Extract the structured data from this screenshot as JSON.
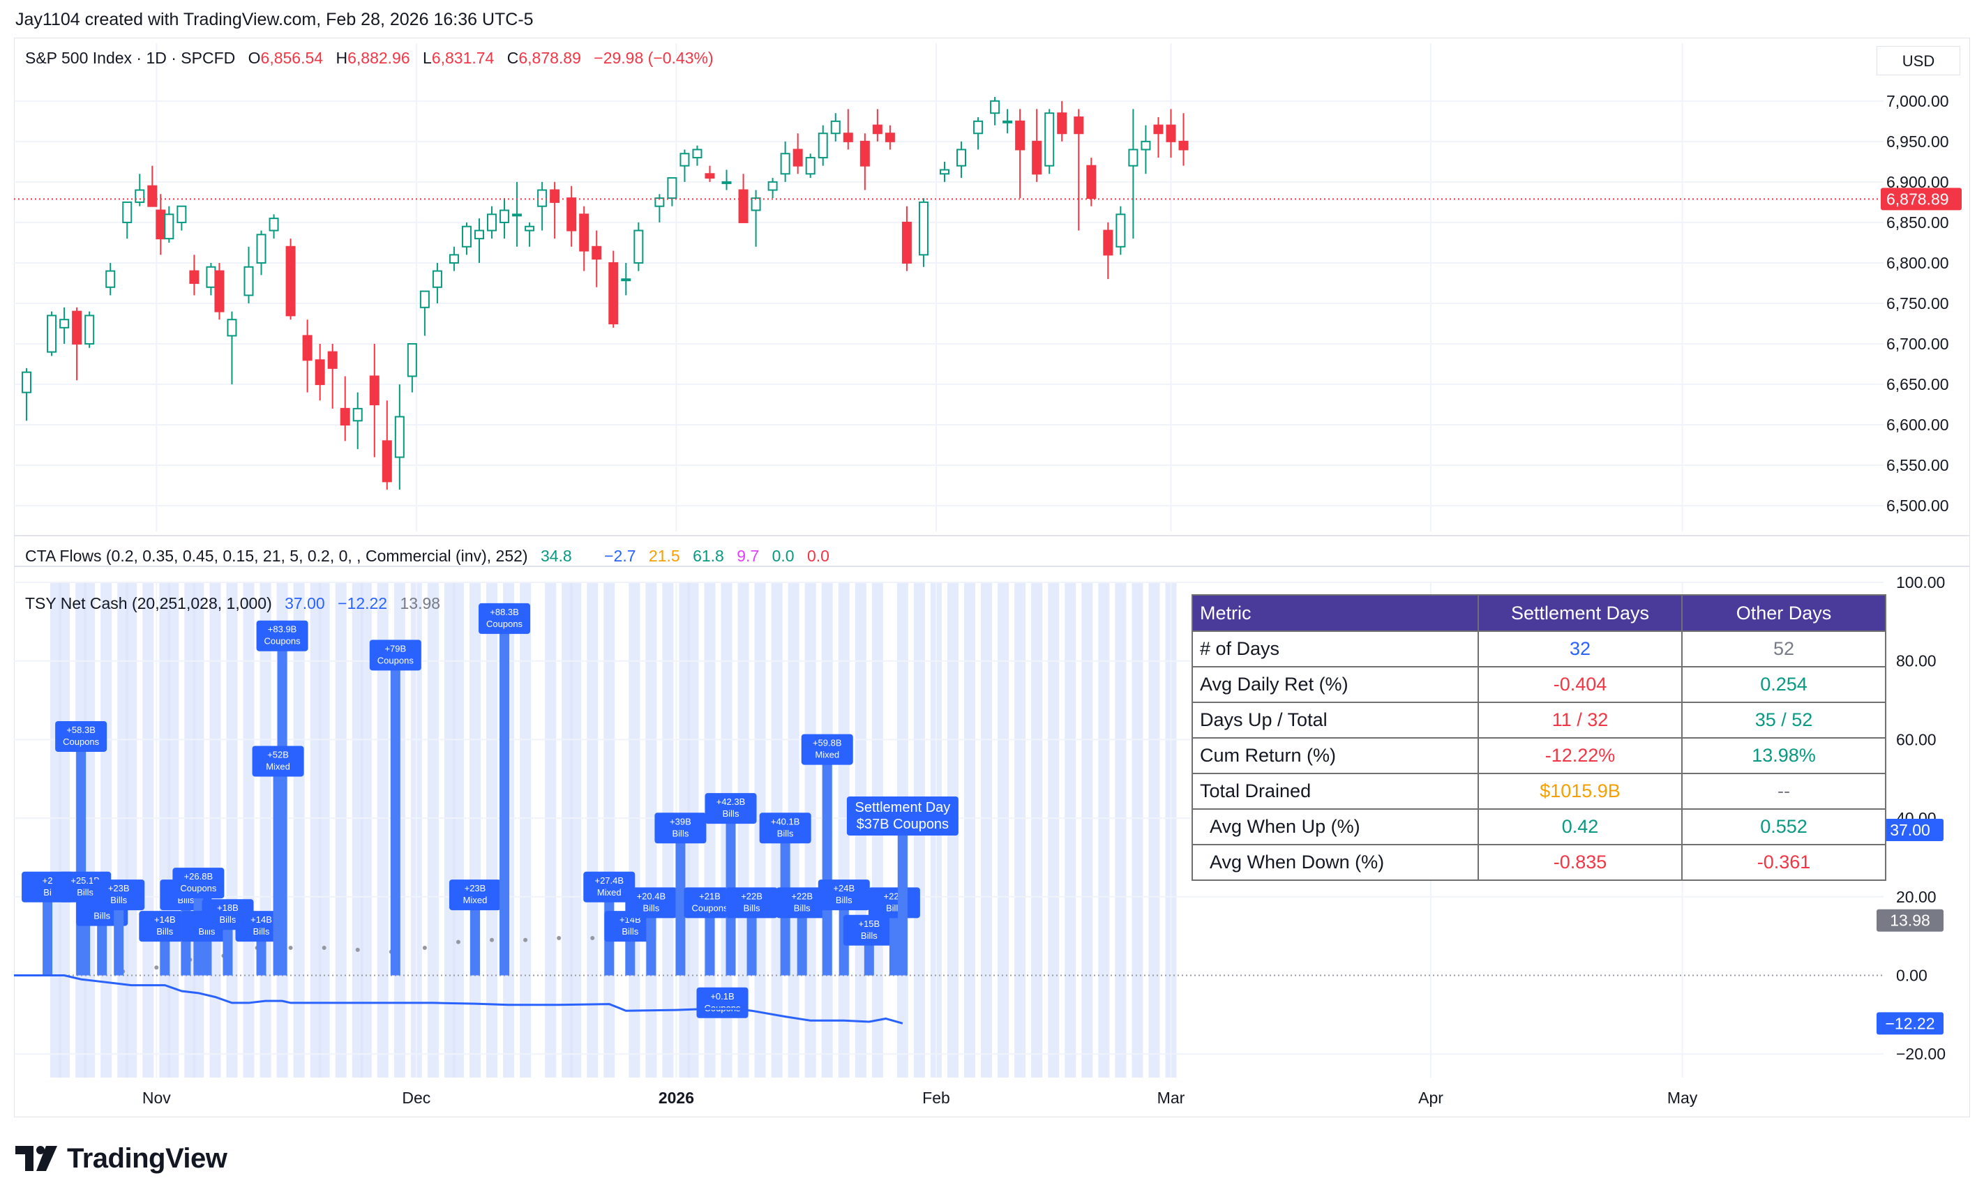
{
  "credit": "Jay1104 created with TradingView.com, Feb 28, 2026 16:36 UTC-5",
  "brand": "TradingView",
  "currency": "USD",
  "colors": {
    "up": "#089981",
    "down": "#f23645",
    "accent": "#2962ff",
    "table_header": "#4a3a9a"
  },
  "legend_price": {
    "symbol": "S&P 500 Index · 1D · SPCFD",
    "o_label": "O",
    "o_value": "6,856.54",
    "h_label": "H",
    "h_value": "6,882.96",
    "l_label": "L",
    "l_value": "6,831.74",
    "c_label": "C",
    "c_value": "6,878.89",
    "change": "−29.98 (−0.43%)"
  },
  "legend_cta": {
    "title": "CTA Flows (0.2, 0.35, 0.45, 0.15, 21, 5, 0.2, 0, , Commercial (inv), 252)",
    "v1": "34.8",
    "v2": "−2.7",
    "v3": "21.5",
    "v4": "61.8",
    "v5": "9.7",
    "v6": "0.0",
    "v7": "0.0"
  },
  "legend_tsy": {
    "title": "TSY Net Cash (20,251,028, 1,000)",
    "v1": "37.00",
    "v2": "−12.22",
    "v3": "13.98"
  },
  "table": {
    "headers": [
      "Metric",
      "Settlement Days",
      "Other Days"
    ],
    "rows": [
      {
        "metric": "# of Days",
        "settle": "32",
        "other": "52",
        "settle_color": "#2962ff",
        "other_color": "#787b86"
      },
      {
        "metric": "Avg Daily Ret (%)",
        "settle": "-0.404",
        "other": "0.254",
        "settle_color": "#f23645",
        "other_color": "#089981"
      },
      {
        "metric": "Days Up / Total",
        "settle": "11 / 32",
        "other": "35 / 52",
        "settle_color": "#f23645",
        "other_color": "#089981"
      },
      {
        "metric": "Cum Return (%)",
        "settle": "-12.22%",
        "other": "13.98%",
        "settle_color": "#f23645",
        "other_color": "#089981"
      },
      {
        "metric": "Total Drained",
        "settle": "$1015.9B",
        "other": "--",
        "settle_color": "#f5a000",
        "other_color": "#787b86"
      },
      {
        "metric": " Avg When Up (%)",
        "settle": "0.42",
        "other": "0.552",
        "settle_color": "#089981",
        "other_color": "#089981"
      },
      {
        "metric": " Avg When Down (%)",
        "settle": "-0.835",
        "other": "-0.361",
        "settle_color": "#f23645",
        "other_color": "#f23645"
      }
    ]
  },
  "chart_data": [
    {
      "type": "candlestick",
      "title": "S&P 500 Index · 1D · SPCFD",
      "ylim": [
        6470,
        7030
      ],
      "y_ticks": [
        "7,000.00",
        "6,950.00",
        "6,900.00",
        "6,850.00",
        "6,800.00",
        "6,750.00",
        "6,700.00",
        "6,650.00",
        "6,600.00",
        "6,550.00",
        "6,500.00"
      ],
      "y_tick_values": [
        7000,
        6950,
        6900,
        6850,
        6800,
        6750,
        6700,
        6650,
        6600,
        6550,
        6500
      ],
      "last_price": 6878.89,
      "last_price_label": "6,878.89",
      "x_ticks": [
        {
          "label": "Nov",
          "day": 22
        },
        {
          "label": "Dec",
          "day": 53
        },
        {
          "label": "2026",
          "day": 84,
          "bold": true
        },
        {
          "label": "Feb",
          "day": 115
        },
        {
          "label": "Mar",
          "day": 143
        },
        {
          "label": "Apr",
          "day": 174
        },
        {
          "label": "May",
          "day": 204
        }
      ],
      "x_range_days": [
        5,
        228
      ],
      "ohlc": [
        [
          6.5,
          6640,
          6670,
          6605,
          6665
        ],
        [
          9.5,
          6690,
          6740,
          6685,
          6735
        ],
        [
          11,
          6720,
          6745,
          6700,
          6730
        ],
        [
          12.5,
          6740,
          6745,
          6655,
          6700
        ],
        [
          14,
          6700,
          6740,
          6695,
          6735
        ],
        [
          16.5,
          6770,
          6800,
          6760,
          6790
        ],
        [
          18.5,
          6850,
          6870,
          6830,
          6875
        ],
        [
          20,
          6875,
          6910,
          6870,
          6890
        ],
        [
          21.5,
          6895,
          6920,
          6870,
          6870
        ],
        [
          22.5,
          6865,
          6885,
          6810,
          6830
        ],
        [
          23.5,
          6830,
          6870,
          6825,
          6860
        ],
        [
          25,
          6850,
          6870,
          6840,
          6870
        ],
        [
          26.5,
          6790,
          6810,
          6760,
          6775
        ],
        [
          28.5,
          6770,
          6800,
          6760,
          6795
        ],
        [
          29.5,
          6790,
          6800,
          6730,
          6740
        ],
        [
          31,
          6710,
          6740,
          6650,
          6730
        ],
        [
          33,
          6760,
          6820,
          6750,
          6795
        ],
        [
          34.5,
          6800,
          6840,
          6785,
          6835
        ],
        [
          36,
          6840,
          6860,
          6830,
          6855
        ],
        [
          38,
          6820,
          6830,
          6730,
          6735
        ],
        [
          40,
          6710,
          6730,
          6640,
          6680
        ],
        [
          41.5,
          6680,
          6700,
          6630,
          6650
        ],
        [
          43,
          6690,
          6700,
          6620,
          6670
        ],
        [
          44.5,
          6620,
          6660,
          6580,
          6600
        ],
        [
          46,
          6605,
          6640,
          6570,
          6620
        ],
        [
          48,
          6660,
          6700,
          6560,
          6625
        ],
        [
          49.5,
          6580,
          6630,
          6520,
          6530
        ],
        [
          51,
          6560,
          6650,
          6520,
          6610
        ],
        [
          52.5,
          6660,
          6700,
          6640,
          6700
        ],
        [
          54,
          6745,
          6765,
          6710,
          6765
        ],
        [
          55.5,
          6770,
          6800,
          6750,
          6790
        ],
        [
          57.5,
          6800,
          6820,
          6790,
          6810
        ],
        [
          59,
          6820,
          6850,
          6810,
          6845
        ],
        [
          60.5,
          6830,
          6855,
          6800,
          6840
        ],
        [
          62,
          6840,
          6870,
          6830,
          6860
        ],
        [
          63.5,
          6850,
          6880,
          6830,
          6865
        ],
        [
          65,
          6860,
          6900,
          6820,
          6860
        ],
        [
          66.5,
          6840,
          6850,
          6820,
          6845
        ],
        [
          68,
          6870,
          6900,
          6840,
          6890
        ],
        [
          69.5,
          6890,
          6900,
          6830,
          6875
        ],
        [
          71.5,
          6880,
          6895,
          6820,
          6840
        ],
        [
          73,
          6860,
          6870,
          6790,
          6815
        ],
        [
          74.5,
          6820,
          6840,
          6770,
          6805
        ],
        [
          76.5,
          6800,
          6815,
          6720,
          6725
        ],
        [
          78,
          6780,
          6800,
          6760,
          6780
        ],
        [
          79.5,
          6800,
          6850,
          6790,
          6840
        ],
        [
          82,
          6870,
          6885,
          6850,
          6880
        ],
        [
          83.5,
          6880,
          6900,
          6870,
          6905
        ],
        [
          85,
          6920,
          6940,
          6900,
          6935
        ],
        [
          86.5,
          6930,
          6945,
          6920,
          6940
        ],
        [
          88,
          6910,
          6920,
          6900,
          6905
        ],
        [
          90,
          6900,
          6915,
          6890,
          6900
        ],
        [
          92,
          6890,
          6910,
          6850,
          6850
        ],
        [
          93.5,
          6865,
          6890,
          6820,
          6880
        ],
        [
          95.5,
          6890,
          6905,
          6880,
          6900
        ],
        [
          97,
          6910,
          6950,
          6900,
          6935
        ],
        [
          98.5,
          6940,
          6960,
          6910,
          6920
        ],
        [
          100,
          6910,
          6935,
          6905,
          6930
        ],
        [
          101.5,
          6930,
          6970,
          6920,
          6960
        ],
        [
          103,
          6960,
          6985,
          6950,
          6975
        ],
        [
          104.5,
          6960,
          6990,
          6940,
          6950
        ],
        [
          106.5,
          6950,
          6960,
          6890,
          6920
        ],
        [
          108,
          6970,
          6990,
          6950,
          6960
        ],
        [
          109.5,
          6960,
          6970,
          6940,
          6950
        ],
        [
          111.5,
          6850,
          6870,
          6790,
          6800
        ],
        [
          113.5,
          6810,
          6880,
          6795,
          6875
        ],
        [
          116,
          6910,
          6925,
          6900,
          6915
        ],
        [
          118,
          6920,
          6950,
          6905,
          6940
        ],
        [
          120,
          6960,
          6980,
          6940,
          6975
        ],
        [
          122,
          6985,
          7005,
          6970,
          7000
        ],
        [
          123.5,
          6975,
          6990,
          6960,
          6975
        ],
        [
          125,
          6975,
          6990,
          6880,
          6940
        ],
        [
          127,
          6950,
          6990,
          6900,
          6910
        ],
        [
          128.5,
          6920,
          6990,
          6910,
          6985
        ],
        [
          130,
          6985,
          7000,
          6950,
          6960
        ],
        [
          132,
          6980,
          6990,
          6840,
          6960
        ],
        [
          133.5,
          6920,
          6930,
          6870,
          6880
        ],
        [
          135.5,
          6840,
          6850,
          6780,
          6810
        ],
        [
          137,
          6820,
          6870,
          6810,
          6860
        ],
        [
          138.5,
          6920,
          6990,
          6830,
          6940
        ],
        [
          140,
          6940,
          6970,
          6910,
          6950
        ],
        [
          141.5,
          6970,
          6980,
          6930,
          6960
        ],
        [
          143,
          6970,
          6990,
          6930,
          6950
        ],
        [
          144.5,
          6950,
          6985,
          6920,
          6940
        ]
      ]
    },
    {
      "type": "bar",
      "title": "TSY Net Cash (20,251,028, 1,000)",
      "ylim": [
        -26,
        100
      ],
      "y_ticks": [
        "100.00",
        "80.00",
        "60.00",
        "40.00",
        "20.00",
        "0.00",
        "−20.00"
      ],
      "y_tick_values": [
        100,
        80,
        60,
        40,
        20,
        0,
        -20
      ],
      "settlement_bands_days": [
        10,
        11,
        13,
        14,
        16,
        18,
        19,
        21,
        23,
        24,
        26,
        27,
        29,
        31,
        33,
        35,
        37,
        39,
        41,
        42,
        44,
        46,
        47,
        49,
        51,
        53,
        55,
        57,
        58,
        60,
        62,
        64,
        66,
        69,
        71,
        72,
        74,
        76,
        79,
        81,
        83,
        85,
        86,
        88,
        90,
        92,
        94,
        96,
        98,
        100,
        102,
        104,
        106,
        108,
        111,
        113,
        115,
        117,
        119,
        121,
        123,
        125,
        127,
        129,
        131,
        133,
        135,
        137,
        139,
        141,
        143
      ],
      "bars": [
        {
          "day": 9,
          "value": 20,
          "label": "+2\nBi"
        },
        {
          "day": 13,
          "value": 58.3,
          "label": "+58.3B\nCoupons"
        },
        {
          "day": 13.5,
          "value": 20,
          "label": "+25.1B\nBills"
        },
        {
          "day": 15.5,
          "value": 14,
          "label": "+19.\nBills"
        },
        {
          "day": 17.5,
          "value": 18,
          "label": "+23B\nBills"
        },
        {
          "day": 23,
          "value": 10,
          "label": "+14B\nBills"
        },
        {
          "day": 25.5,
          "value": 18,
          "label": "+\nBills"
        },
        {
          "day": 27,
          "value": 21,
          "label": "+26.8B\nCoupons"
        },
        {
          "day": 28,
          "value": 10,
          "label": "+1\nBills"
        },
        {
          "day": 30.5,
          "value": 13,
          "label": "+18B\nBills"
        },
        {
          "day": 34.5,
          "value": 10,
          "label": "+14B\nBills"
        },
        {
          "day": 37,
          "value": 83.9,
          "label": "+83.9B\nCoupons"
        },
        {
          "day": 36.5,
          "value": 52,
          "label": "+52B\nMixed"
        },
        {
          "day": 50.5,
          "value": 79,
          "label": "+79B\nCoupons"
        },
        {
          "day": 60,
          "value": 18,
          "label": "+23B\nMixed"
        },
        {
          "day": 63.5,
          "value": 88.3,
          "label": "+88.3B\nCoupons"
        },
        {
          "day": 76,
          "value": 20,
          "label": "+27.4B\nMixed"
        },
        {
          "day": 78.5,
          "value": 10,
          "label": "+14B\nBills"
        },
        {
          "day": 81,
          "value": 16,
          "label": "+20.4B\nBills"
        },
        {
          "day": 84.5,
          "value": 35,
          "label": "+39B\nBills"
        },
        {
          "day": 88,
          "value": 16,
          "label": "+21B\nCoupons"
        },
        {
          "day": 90.5,
          "value": 40,
          "label": "+42.3B\nBills"
        },
        {
          "day": 93,
          "value": 16,
          "label": "+22B\nBills"
        },
        {
          "day": 97,
          "value": 35,
          "label": "+40.1B\nBills"
        },
        {
          "day": 99,
          "value": 16,
          "label": "+22B\nBills"
        },
        {
          "day": 102,
          "value": 55,
          "label": "+59.8B\nMixed"
        },
        {
          "day": 104,
          "value": 18,
          "label": "+24B\nBills"
        },
        {
          "day": 107,
          "value": 9,
          "label": "+15B\nBills"
        },
        {
          "day": 110,
          "value": 16,
          "label": "+22B\nBills"
        },
        {
          "day": 111,
          "value": 37,
          "label": "Settlement Day\n$37B  Coupons",
          "big": true
        },
        {
          "day": 89.5,
          "value": -2,
          "label": "+0.1B\nCoupons",
          "below": true
        }
      ],
      "cum_settlement_line": [
        [
          5,
          0
        ],
        [
          11,
          0
        ],
        [
          13,
          -1
        ],
        [
          15,
          -1.5
        ],
        [
          17,
          -2
        ],
        [
          19,
          -2.5
        ],
        [
          23,
          -2.5
        ],
        [
          25,
          -4
        ],
        [
          27,
          -4.5
        ],
        [
          29,
          -5.5
        ],
        [
          31,
          -7
        ],
        [
          33,
          -7
        ],
        [
          35,
          -6.5
        ],
        [
          37,
          -6.5
        ],
        [
          38,
          -7
        ],
        [
          45,
          -7
        ],
        [
          55,
          -7
        ],
        [
          60,
          -7.2
        ],
        [
          64,
          -7.5
        ],
        [
          70,
          -7.5
        ],
        [
          76,
          -7.3
        ],
        [
          78,
          -9
        ],
        [
          84,
          -8.8
        ],
        [
          88,
          -8.5
        ],
        [
          91,
          -8.5
        ],
        [
          93,
          -9
        ],
        [
          97,
          -10.5
        ],
        [
          100,
          -11.5
        ],
        [
          104,
          -11.5
        ],
        [
          107,
          -11.8
        ],
        [
          109,
          -11
        ],
        [
          111,
          -12.22
        ]
      ],
      "cum_other_dots": [
        [
          18,
          1
        ],
        [
          22,
          2
        ],
        [
          26,
          4
        ],
        [
          30,
          5
        ],
        [
          34,
          7
        ],
        [
          38,
          7
        ],
        [
          42,
          7
        ],
        [
          46,
          6.5
        ],
        [
          50,
          6
        ],
        [
          54,
          7
        ],
        [
          58,
          8.5
        ],
        [
          62,
          9
        ],
        [
          66,
          9
        ],
        [
          70,
          9.5
        ],
        [
          74,
          9.5
        ],
        [
          78,
          10
        ]
      ],
      "last_values": [
        {
          "label": "37.00",
          "value": 37,
          "color": "#2962ff"
        },
        {
          "label": "13.98",
          "value": 13.98,
          "color": "#787b86"
        },
        {
          "label": "−12.22",
          "value": -12.22,
          "color": "#2962ff"
        }
      ]
    }
  ]
}
